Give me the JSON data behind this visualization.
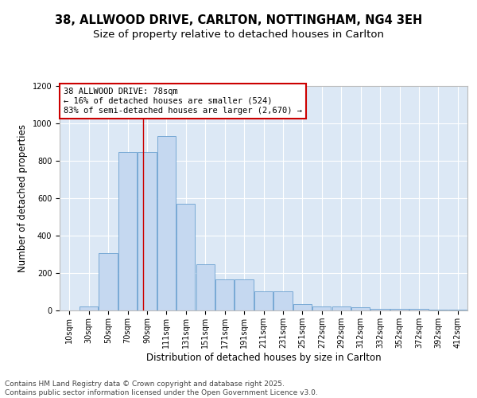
{
  "title_line1": "38, ALLWOOD DRIVE, CARLTON, NOTTINGHAM, NG4 3EH",
  "title_line2": "Size of property relative to detached houses in Carlton",
  "xlabel": "Distribution of detached houses by size in Carlton",
  "ylabel": "Number of detached properties",
  "bar_color": "#c5d8f0",
  "bar_edge_color": "#6aa0d0",
  "background_color": "#dce8f5",
  "grid_color": "#ffffff",
  "fig_bg_color": "#ffffff",
  "categories": [
    "10sqm",
    "30sqm",
    "50sqm",
    "70sqm",
    "90sqm",
    "111sqm",
    "131sqm",
    "151sqm",
    "171sqm",
    "191sqm",
    "211sqm",
    "231sqm",
    "251sqm",
    "272sqm",
    "292sqm",
    "312sqm",
    "332sqm",
    "352sqm",
    "372sqm",
    "392sqm",
    "412sqm"
  ],
  "values": [
    0,
    20,
    305,
    845,
    845,
    930,
    570,
    245,
    165,
    165,
    100,
    100,
    35,
    20,
    20,
    15,
    10,
    10,
    10,
    5,
    5
  ],
  "n_bins": 21,
  "vline_position": 3.8,
  "vline_color": "#cc0000",
  "annotation_text": "38 ALLWOOD DRIVE: 78sqm\n← 16% of detached houses are smaller (524)\n83% of semi-detached houses are larger (2,670) →",
  "annotation_box_color": "#ffffff",
  "annotation_box_edge": "#cc0000",
  "ylim": [
    0,
    1200
  ],
  "yticks": [
    0,
    200,
    400,
    600,
    800,
    1000,
    1200
  ],
  "footer_line1": "Contains HM Land Registry data © Crown copyright and database right 2025.",
  "footer_line2": "Contains public sector information licensed under the Open Government Licence v3.0.",
  "title_fontsize": 10.5,
  "subtitle_fontsize": 9.5,
  "axis_label_fontsize": 8.5,
  "tick_fontsize": 7,
  "annotation_fontsize": 7.5,
  "footer_fontsize": 6.5
}
